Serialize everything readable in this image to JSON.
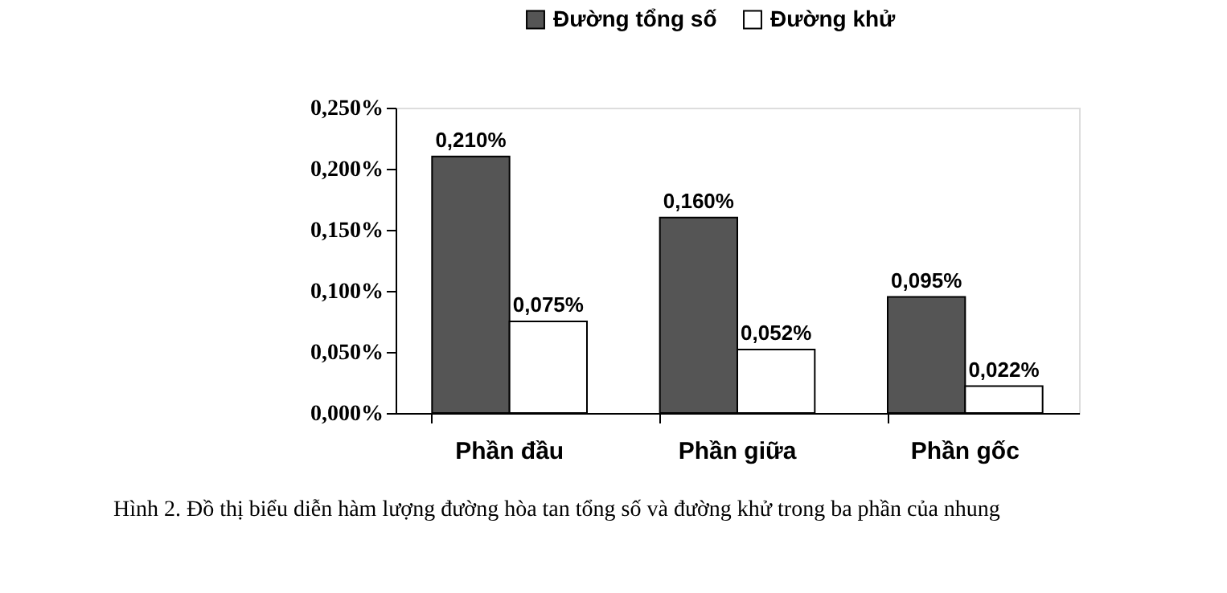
{
  "chart_data": {
    "type": "bar",
    "categories": [
      "Phần  đầu",
      "Phần giữa",
      "Phần gốc"
    ],
    "series": [
      {
        "name": "Đường tổng số",
        "color": "#555555",
        "values": [
          0.21,
          0.16,
          0.095
        ],
        "value_labels": [
          "0,210%",
          "0,160%",
          "0,095%"
        ]
      },
      {
        "name": "Đường khử",
        "color": "#ffffff",
        "values": [
          0.075,
          0.052,
          0.022
        ],
        "value_labels": [
          "0,075%",
          "0,052%",
          "0,022%"
        ]
      }
    ],
    "ylim": [
      0,
      0.25
    ],
    "yticks": [
      {
        "value": 0,
        "label": "0,000%"
      },
      {
        "value": 0.05,
        "label": "0,050%"
      },
      {
        "value": 0.1,
        "label": "0,100%"
      },
      {
        "value": 0.15,
        "label": "0,150%"
      },
      {
        "value": 0.2,
        "label": "0,200%"
      },
      {
        "value": 0.25,
        "label": "0,250%"
      }
    ],
    "grid": false,
    "legend": "top",
    "annotations": [
      "Hình 2. Đồ thị biểu diễn hàm lượng đường hòa tan tổng số và đường khử trong ba  phần  của nhung"
    ]
  }
}
